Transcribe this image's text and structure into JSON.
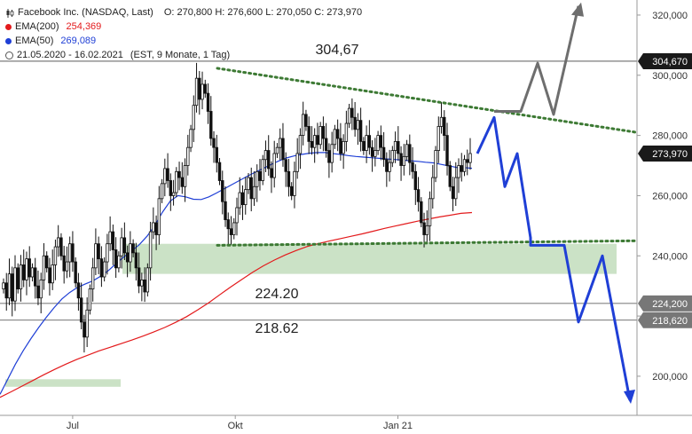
{
  "legend": {
    "title": "Facebook Inc. (NASDAQ, Last)",
    "ohlc": "O: 270,800  H: 276,600  L: 270,050  C: 273,970",
    "ema200_label": "EMA(200)",
    "ema200_value": "254,369",
    "ema50_label": "EMA(50)",
    "ema50_value": "269,089",
    "range": "21.05.2020 - 16.02.2021",
    "range_meta": "(EST, 9 Monate, 1 Tag)"
  },
  "colors": {
    "candle": "#111111",
    "ema200": "#e31a1c",
    "ema50": "#1f3fd6",
    "trend_dotted": "#3d7a34",
    "support_zone": "#a8cfa0",
    "forecast_blue": "#1f3fd6",
    "forecast_gray": "#6e6e6e",
    "price_tag_bg": "#1a1a1a",
    "level_tag_bg": "#777777"
  },
  "chart_data": {
    "type": "candlestick",
    "xlabel": "",
    "ylabel": "",
    "ylim": [
      187000,
      325000
    ],
    "x_ticks": [
      "Jul",
      "Okt",
      "Jan 21"
    ],
    "y_ticks": [
      {
        "value": 200000,
        "label": "200,000"
      },
      {
        "value": 220000,
        "label": "220,000"
      },
      {
        "value": 240000,
        "label": "240,000"
      },
      {
        "value": 260000,
        "label": "260,000"
      },
      {
        "value": 280000,
        "label": "280,000"
      },
      {
        "value": 300000,
        "label": "300,000"
      },
      {
        "value": 320000,
        "label": "320,000"
      }
    ],
    "price_tags": [
      {
        "value": 304670,
        "label": "304,670",
        "style": "dark"
      },
      {
        "value": 273970,
        "label": "273,970",
        "style": "dark"
      },
      {
        "value": 224200,
        "label": "224,200",
        "style": "gray"
      },
      {
        "value": 218620,
        "label": "218,620",
        "style": "gray"
      }
    ],
    "horizontal_levels": [
      {
        "value": 304670,
        "label": "304,67"
      },
      {
        "value": 224200,
        "label": "224.20"
      },
      {
        "value": 218620,
        "label": "218.62"
      }
    ],
    "closes": [
      231000,
      226000,
      234000,
      225000,
      236000,
      229000,
      237000,
      232000,
      239000,
      233000,
      236000,
      230000,
      226000,
      232000,
      240000,
      236000,
      231000,
      237000,
      243000,
      246000,
      240000,
      235000,
      238000,
      244000,
      238000,
      231000,
      226000,
      218000,
      213000,
      222000,
      229000,
      236000,
      244000,
      239000,
      233000,
      238000,
      244000,
      248000,
      242000,
      236000,
      240000,
      246000,
      241000,
      238000,
      244000,
      241000,
      236000,
      230000,
      232000,
      228000,
      236000,
      248000,
      251000,
      247000,
      259000,
      264000,
      269000,
      265000,
      260000,
      261000,
      268000,
      266000,
      263000,
      270000,
      276000,
      282000,
      290000,
      299000,
      292000,
      297000,
      294000,
      288000,
      279000,
      276000,
      271000,
      265000,
      258000,
      252000,
      249000,
      247000,
      251000,
      256000,
      261000,
      257000,
      262000,
      266000,
      259000,
      263000,
      268000,
      265000,
      272000,
      275000,
      269000,
      266000,
      274000,
      276000,
      279000,
      272000,
      268000,
      263000,
      260000,
      268000,
      274000,
      280000,
      287000,
      283000,
      278000,
      276000,
      280000,
      277000,
      283000,
      279000,
      275000,
      271000,
      277000,
      282000,
      279000,
      274000,
      278000,
      284000,
      289000,
      286000,
      282000,
      285000,
      278000,
      275000,
      280000,
      276000,
      273000,
      275000,
      280000,
      276000,
      272000,
      268000,
      271000,
      275000,
      278000,
      274000,
      270000,
      273000,
      277000,
      271000,
      268000,
      262000,
      258000,
      251000,
      247000,
      250000,
      259000,
      266000,
      275000,
      283000,
      286000,
      280000,
      270000,
      263000,
      259000,
      266000,
      270000,
      268000,
      272000,
      271000,
      274000
    ],
    "ema200": [
      193000,
      194800,
      196700,
      198600,
      200500,
      202300,
      204000,
      205600,
      207000,
      208400,
      209600,
      210800,
      212000,
      213300,
      214700,
      216200,
      217900,
      219800,
      222000,
      224400,
      227000,
      229600,
      232100,
      234500,
      236700,
      238600,
      240300,
      241800,
      243100,
      244100,
      244900,
      245700,
      246500,
      247300,
      248200,
      249100,
      249900,
      250700,
      251500,
      252200,
      252900,
      253500,
      254100,
      254369
    ],
    "ema50": [
      194000,
      199000,
      204000,
      208500,
      212500,
      216200,
      219600,
      222800,
      225700,
      227800,
      229500,
      230600,
      231700,
      233200,
      235100,
      237400,
      239600,
      241600,
      243700,
      246500,
      250000,
      254500,
      258200,
      260000,
      259600,
      258800,
      258700,
      259600,
      260900,
      262300,
      263700,
      265100,
      266500,
      267800,
      269000,
      270300,
      271500,
      272500,
      273200,
      273700,
      274100,
      274300,
      274300,
      274000,
      273700,
      273300,
      273000,
      272800,
      272600,
      272400,
      272200,
      272000,
      271800,
      271600,
      271400,
      271100,
      270900,
      270400,
      269900,
      269400,
      269300,
      269089
    ],
    "resistance_trend": {
      "start": 304670,
      "end": 281000
    },
    "support_trend": {
      "start": 243500,
      "end": 245000
    },
    "support_zone": {
      "from": 234000,
      "to": 244000
    },
    "lower_zone": {
      "from": 196500,
      "to": 199000
    },
    "forecast_bear": [
      274000,
      286000,
      263000,
      274000,
      246000,
      243500,
      243500,
      218000,
      240000,
      192000
    ],
    "forecast_bull": [
      288000,
      288000,
      304000,
      287000,
      323000
    ]
  }
}
